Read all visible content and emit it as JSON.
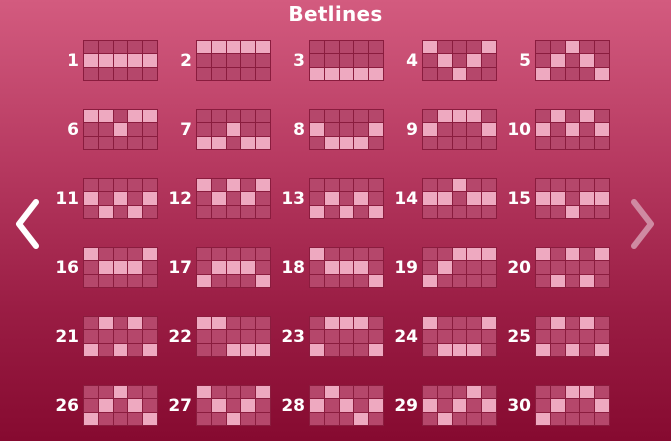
{
  "title": "Betlines",
  "nav": {
    "prev_icon": "chevron-left-icon",
    "next_icon": "chevron-right-icon"
  },
  "colors": {
    "cell_off": "#b5476b",
    "cell_on": "#eea9c0",
    "grid_line": "#8a1c3e",
    "arrow_active": "#ffffff",
    "arrow_inactive": "#cf8aa2"
  },
  "betlines": [
    {
      "number": "1",
      "rows": [
        1,
        1,
        1,
        1,
        1
      ]
    },
    {
      "number": "2",
      "rows": [
        0,
        0,
        0,
        0,
        0
      ]
    },
    {
      "number": "3",
      "rows": [
        2,
        2,
        2,
        2,
        2
      ]
    },
    {
      "number": "4",
      "rows": [
        0,
        1,
        2,
        1,
        0
      ]
    },
    {
      "number": "5",
      "rows": [
        2,
        1,
        0,
        1,
        2
      ]
    },
    {
      "number": "6",
      "rows": [
        0,
        0,
        1,
        0,
        0
      ]
    },
    {
      "number": "7",
      "rows": [
        2,
        2,
        1,
        2,
        2
      ]
    },
    {
      "number": "8",
      "rows": [
        1,
        2,
        2,
        2,
        1
      ]
    },
    {
      "number": "9",
      "rows": [
        1,
        0,
        0,
        0,
        1
      ]
    },
    {
      "number": "10",
      "rows": [
        1,
        0,
        1,
        0,
        1
      ]
    },
    {
      "number": "11",
      "rows": [
        1,
        2,
        1,
        2,
        1
      ]
    },
    {
      "number": "12",
      "rows": [
        0,
        1,
        0,
        1,
        0
      ]
    },
    {
      "number": "13",
      "rows": [
        2,
        1,
        2,
        1,
        2
      ]
    },
    {
      "number": "14",
      "rows": [
        1,
        1,
        0,
        1,
        1
      ]
    },
    {
      "number": "15",
      "rows": [
        1,
        1,
        2,
        1,
        1
      ]
    },
    {
      "number": "16",
      "rows": [
        0,
        1,
        1,
        1,
        0
      ]
    },
    {
      "number": "17",
      "rows": [
        2,
        1,
        1,
        1,
        2
      ]
    },
    {
      "number": "18",
      "rows": [
        0,
        1,
        1,
        1,
        2
      ]
    },
    {
      "number": "19",
      "rows": [
        2,
        1,
        0,
        0,
        0
      ]
    },
    {
      "number": "20",
      "rows": [
        0,
        2,
        0,
        2,
        0
      ]
    },
    {
      "number": "21",
      "rows": [
        2,
        0,
        2,
        0,
        2
      ]
    },
    {
      "number": "22",
      "rows": [
        0,
        0,
        2,
        2,
        2
      ]
    },
    {
      "number": "23",
      "rows": [
        2,
        0,
        0,
        0,
        2
      ]
    },
    {
      "number": "24",
      "rows": [
        0,
        2,
        2,
        2,
        0
      ]
    },
    {
      "number": "25",
      "rows": [
        2,
        0,
        2,
        0,
        2
      ]
    },
    {
      "number": "26",
      "rows": [
        2,
        1,
        0,
        1,
        2
      ]
    },
    {
      "number": "27",
      "rows": [
        0,
        1,
        2,
        1,
        0
      ]
    },
    {
      "number": "28",
      "rows": [
        1,
        0,
        1,
        2,
        1
      ]
    },
    {
      "number": "29",
      "rows": [
        1,
        2,
        1,
        0,
        1
      ]
    },
    {
      "number": "30",
      "rows": [
        2,
        1,
        0,
        0,
        1
      ]
    }
  ]
}
